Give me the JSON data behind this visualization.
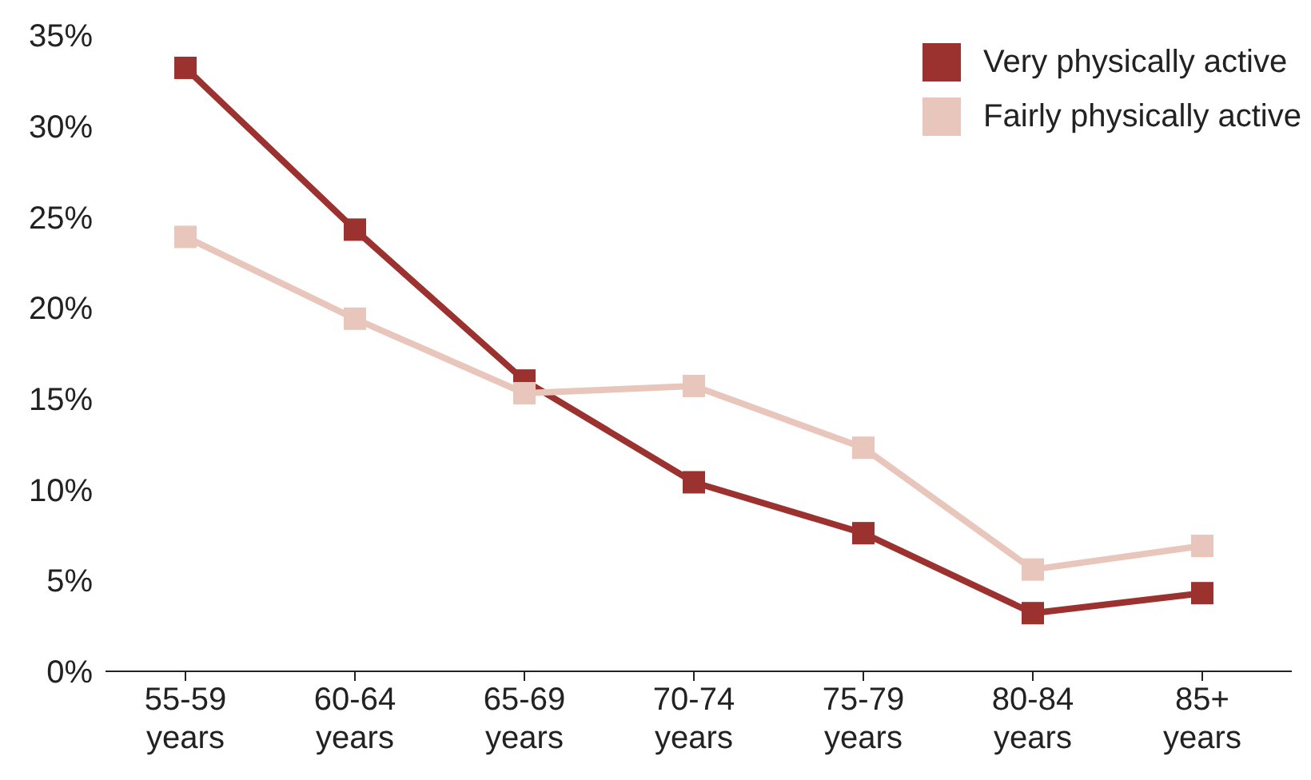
{
  "chart_data": {
    "type": "line",
    "categories": [
      "55-59 years",
      "60-64 years",
      "65-69 years",
      "70-74 years",
      "75-79 years",
      "80-84 years",
      "85+ years"
    ],
    "series": [
      {
        "name": "Very physically active",
        "color": "#9b3230",
        "values": [
          33.2,
          24.3,
          16.0,
          10.4,
          7.6,
          3.2,
          4.3
        ]
      },
      {
        "name": "Fairly physically active",
        "color": "#e9c6bb",
        "values": [
          23.9,
          19.4,
          15.3,
          15.7,
          12.3,
          5.6,
          6.9
        ]
      }
    ],
    "ylim": [
      0,
      35
    ],
    "yticks": [
      {
        "value": 0,
        "label": "0%"
      },
      {
        "value": 5,
        "label": "5%"
      },
      {
        "value": 10,
        "label": "10%"
      },
      {
        "value": 15,
        "label": "15%"
      },
      {
        "value": 20,
        "label": "20%"
      },
      {
        "value": 25,
        "label": "25%"
      },
      {
        "value": 30,
        "label": "30%"
      },
      {
        "value": 35,
        "label": "35%"
      }
    ],
    "grid": false,
    "legend": "top right",
    "marker": "square",
    "line_style": "solid"
  }
}
